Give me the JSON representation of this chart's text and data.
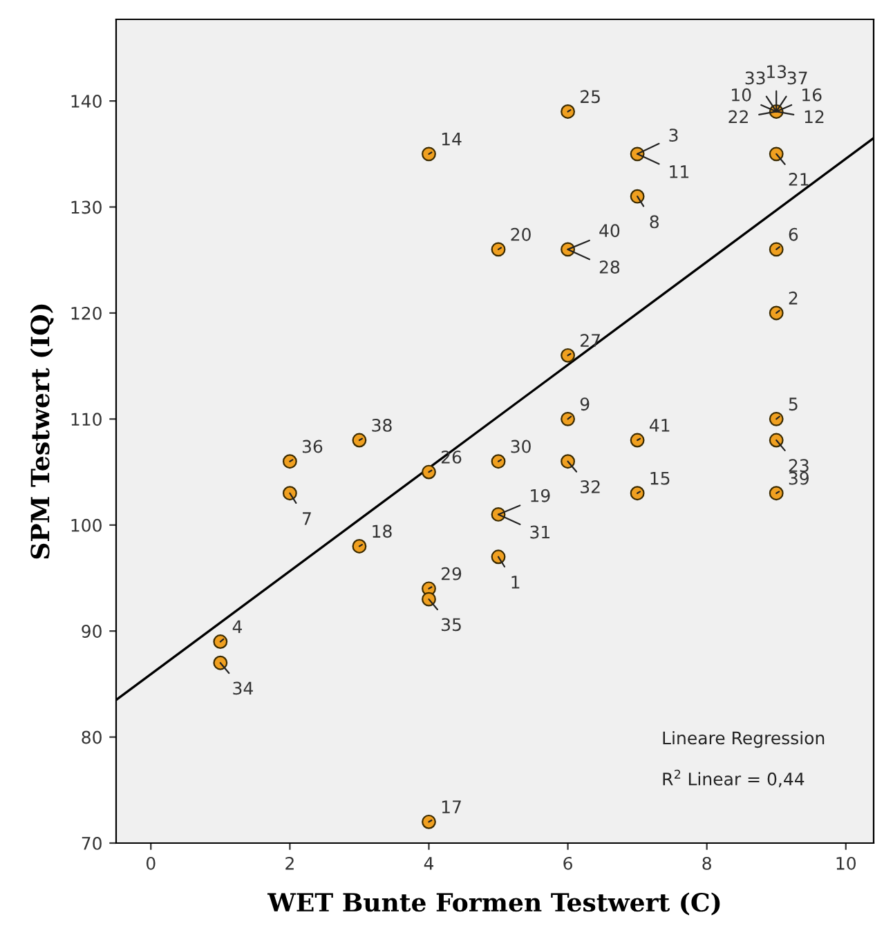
{
  "chart_data": {
    "type": "scatter",
    "xlabel": "WET Bunte Formen Testwert (C)",
    "ylabel": "SPM Testwert (IQ)",
    "xlim": [
      -0.5,
      10.4
    ],
    "ylim": [
      70,
      147.7
    ],
    "xticks": [
      0,
      2,
      4,
      6,
      8,
      10
    ],
    "yticks": [
      70,
      80,
      90,
      100,
      110,
      120,
      130,
      140
    ],
    "grid": false,
    "legend": false,
    "marker": "circle",
    "series": [
      {
        "type": "scatter",
        "color": "#f0a020",
        "x": [
          1,
          1,
          2,
          2,
          3,
          3,
          4,
          4,
          4,
          4,
          4,
          5,
          5,
          5,
          5,
          6,
          6,
          6,
          6,
          6,
          7,
          7,
          7,
          7,
          9,
          9,
          9,
          9,
          9,
          9,
          9
        ],
        "values": [
          89,
          87,
          106,
          103,
          108,
          98,
          135,
          105,
          94,
          93,
          72,
          126,
          106,
          101,
          97,
          139,
          126,
          116,
          110,
          106,
          135,
          131,
          108,
          103,
          139,
          135,
          126,
          120,
          110,
          108,
          103
        ]
      },
      {
        "type": "line",
        "color": "#000000",
        "line_style": "solid",
        "marker": "none",
        "x": [
          -0.5,
          10.4
        ],
        "values": [
          83.5,
          136.5
        ]
      }
    ],
    "annotations": [
      {
        "text": "4",
        "x": 1,
        "y": 89
      },
      {
        "text": "34",
        "x": 1,
        "y": 87
      },
      {
        "text": "36",
        "x": 2,
        "y": 106
      },
      {
        "text": "7",
        "x": 2,
        "y": 103
      },
      {
        "text": "38",
        "x": 3,
        "y": 108
      },
      {
        "text": "18",
        "x": 3,
        "y": 98
      },
      {
        "text": "14",
        "x": 4,
        "y": 135
      },
      {
        "text": "26",
        "x": 4,
        "y": 105
      },
      {
        "text": "29",
        "x": 4,
        "y": 94
      },
      {
        "text": "35",
        "x": 4,
        "y": 93
      },
      {
        "text": "17",
        "x": 4,
        "y": 72
      },
      {
        "text": "20",
        "x": 5,
        "y": 126
      },
      {
        "text": "30",
        "x": 5,
        "y": 106
      },
      {
        "text": "19",
        "x": 5,
        "y": 101
      },
      {
        "text": "31",
        "x": 5,
        "y": 101
      },
      {
        "text": "1",
        "x": 5,
        "y": 97
      },
      {
        "text": "25",
        "x": 6,
        "y": 139
      },
      {
        "text": "40",
        "x": 6,
        "y": 126
      },
      {
        "text": "28",
        "x": 6,
        "y": 126
      },
      {
        "text": "27",
        "x": 6,
        "y": 116
      },
      {
        "text": "9",
        "x": 6,
        "y": 110
      },
      {
        "text": "32",
        "x": 6,
        "y": 106
      },
      {
        "text": "3",
        "x": 7,
        "y": 135
      },
      {
        "text": "11",
        "x": 7,
        "y": 135
      },
      {
        "text": "8",
        "x": 7,
        "y": 131
      },
      {
        "text": "41",
        "x": 7,
        "y": 108
      },
      {
        "text": "15",
        "x": 7,
        "y": 103
      },
      {
        "text": "22",
        "x": 9,
        "y": 139
      },
      {
        "text": "10",
        "x": 9,
        "y": 139
      },
      {
        "text": "33",
        "x": 9,
        "y": 139
      },
      {
        "text": "13",
        "x": 9,
        "y": 139
      },
      {
        "text": "37",
        "x": 9,
        "y": 139
      },
      {
        "text": "16",
        "x": 9,
        "y": 139
      },
      {
        "text": "12",
        "x": 9,
        "y": 139
      },
      {
        "text": "21",
        "x": 9,
        "y": 135
      },
      {
        "text": "6",
        "x": 9,
        "y": 126
      },
      {
        "text": "2",
        "x": 9,
        "y": 120
      },
      {
        "text": "5",
        "x": 9,
        "y": 110
      },
      {
        "text": "23",
        "x": 9,
        "y": 108
      },
      {
        "text": "39",
        "x": 9,
        "y": 103
      },
      "Lineare Regression",
      "R$^{2}$ Linear = 0,44"
    ]
  }
}
